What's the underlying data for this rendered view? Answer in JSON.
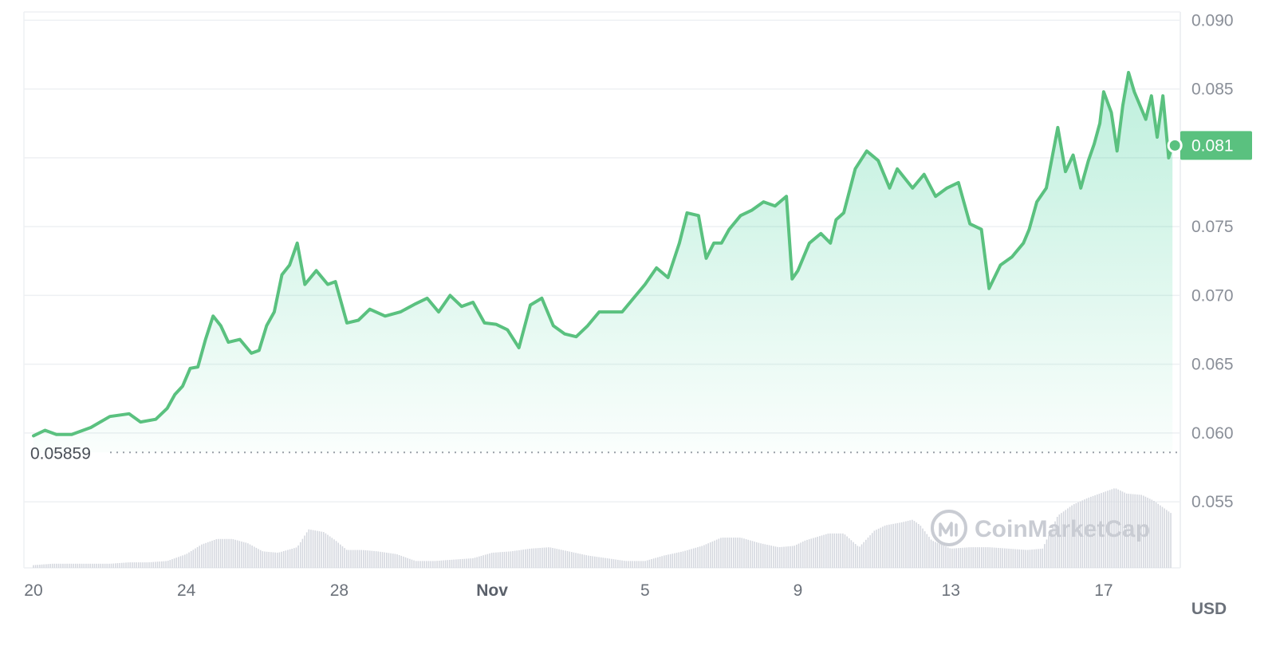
{
  "chart_data": {
    "type": "area",
    "x_ticks": [
      "20",
      "24",
      "28",
      "Nov",
      "5",
      "9",
      "13",
      "17"
    ],
    "x_tick_positions": [
      20,
      24,
      28,
      32,
      36,
      40,
      44,
      48
    ],
    "y_ticks": [
      "0.090",
      "0.085",
      "0.075",
      "0.070",
      "0.065",
      "0.060",
      "0.055"
    ],
    "y_tick_values": [
      0.09,
      0.085,
      0.075,
      0.07,
      0.065,
      0.06,
      0.055
    ],
    "ylim": [
      0.0502,
      0.0906
    ],
    "xlim": [
      19.75,
      49.9
    ],
    "unit_label": "USD",
    "open_price_label": "0.05859",
    "open_price_value": 0.05859,
    "current_price_label": "0.081",
    "current_price_value": 0.0809,
    "watermark": "CoinMarketCap",
    "colors": {
      "line": "#5ac17f",
      "fill": "#16c784",
      "grid": "#eef0f3",
      "volume": "#d5d8df",
      "badge": "#5ac17f"
    },
    "price_series": {
      "x": [
        20.0,
        20.3,
        20.6,
        21.0,
        21.5,
        22.0,
        22.5,
        22.8,
        23.2,
        23.5,
        23.7,
        23.9,
        24.1,
        24.3,
        24.5,
        24.7,
        24.9,
        25.1,
        25.4,
        25.7,
        25.9,
        26.1,
        26.3,
        26.5,
        26.7,
        26.9,
        27.1,
        27.4,
        27.7,
        27.9,
        28.2,
        28.5,
        28.8,
        29.2,
        29.6,
        30.0,
        30.3,
        30.6,
        30.9,
        31.2,
        31.5,
        31.8,
        32.1,
        32.4,
        32.7,
        33.0,
        33.3,
        33.6,
        33.9,
        34.2,
        34.5,
        34.8,
        35.1,
        35.4,
        35.7,
        36.0,
        36.3,
        36.6,
        36.9,
        37.1,
        37.4,
        37.6,
        37.8,
        38.0,
        38.2,
        38.5,
        38.8,
        39.1,
        39.4,
        39.7,
        39.85,
        40.0,
        40.3,
        40.6,
        40.85,
        41.0,
        41.2,
        41.5,
        41.8,
        42.1,
        42.4,
        42.6,
        42.8,
        43.0,
        43.3,
        43.6,
        43.9,
        44.2,
        44.5,
        44.8,
        45.0,
        45.3,
        45.6,
        45.9,
        46.05,
        46.25,
        46.5,
        46.8,
        47.0,
        47.2,
        47.4,
        47.6,
        47.75,
        47.9,
        48.0,
        48.2,
        48.35,
        48.5,
        48.65,
        48.8,
        48.95,
        49.1,
        49.25,
        49.4,
        49.55,
        49.7,
        49.8
      ],
      "y": [
        0.0598,
        0.0602,
        0.0599,
        0.0599,
        0.0604,
        0.0612,
        0.0614,
        0.0608,
        0.061,
        0.0618,
        0.0628,
        0.0634,
        0.0647,
        0.0648,
        0.0668,
        0.0685,
        0.0678,
        0.0666,
        0.0668,
        0.0658,
        0.066,
        0.0678,
        0.0688,
        0.0715,
        0.0722,
        0.0738,
        0.0708,
        0.0718,
        0.0708,
        0.071,
        0.068,
        0.0682,
        0.069,
        0.0685,
        0.0688,
        0.0694,
        0.0698,
        0.0688,
        0.07,
        0.0692,
        0.0695,
        0.068,
        0.0679,
        0.0675,
        0.0662,
        0.0693,
        0.0698,
        0.0678,
        0.0672,
        0.067,
        0.0678,
        0.0688,
        0.0688,
        0.0688,
        0.0698,
        0.0708,
        0.072,
        0.0713,
        0.0738,
        0.076,
        0.0758,
        0.0727,
        0.0738,
        0.0738,
        0.0748,
        0.0758,
        0.0762,
        0.0768,
        0.0765,
        0.0772,
        0.0712,
        0.0718,
        0.0738,
        0.0745,
        0.0738,
        0.0755,
        0.076,
        0.0792,
        0.0805,
        0.0798,
        0.0778,
        0.0792,
        0.0785,
        0.0778,
        0.0788,
        0.0772,
        0.0778,
        0.0782,
        0.0752,
        0.0748,
        0.0705,
        0.0722,
        0.0728,
        0.0738,
        0.0748,
        0.0768,
        0.0778,
        0.0822,
        0.079,
        0.0802,
        0.0778,
        0.0798,
        0.081,
        0.0825,
        0.0848,
        0.0833,
        0.0805,
        0.0838,
        0.0862,
        0.0848,
        0.0838,
        0.0828,
        0.0845,
        0.0815,
        0.0845,
        0.08,
        0.0809
      ]
    },
    "volume_series": {
      "x": [
        20.0,
        20.5,
        21.0,
        21.5,
        22.0,
        22.5,
        23.0,
        23.5,
        24.0,
        24.4,
        24.8,
        25.2,
        25.6,
        26.0,
        26.4,
        26.9,
        27.2,
        27.6,
        27.9,
        28.2,
        28.6,
        29.0,
        29.5,
        30.0,
        30.5,
        31.0,
        31.5,
        32.0,
        32.5,
        33.0,
        33.5,
        34.0,
        34.5,
        35.0,
        35.5,
        36.0,
        36.5,
        37.0,
        37.5,
        38.0,
        38.5,
        39.0,
        39.5,
        39.9,
        40.2,
        40.8,
        41.2,
        41.6,
        42.0,
        42.3,
        42.7,
        43.0,
        43.2,
        43.5,
        44.0,
        44.5,
        45.0,
        45.5,
        46.0,
        46.4,
        46.8,
        47.2,
        47.6,
        48.0,
        48.3,
        48.6,
        49.0,
        49.3,
        49.6,
        49.8
      ],
      "y": [
        0.0504,
        0.0505,
        0.0505,
        0.0505,
        0.0505,
        0.0506,
        0.0506,
        0.0507,
        0.0512,
        0.0519,
        0.0523,
        0.0523,
        0.052,
        0.0514,
        0.0513,
        0.0517,
        0.053,
        0.0528,
        0.0522,
        0.0515,
        0.0515,
        0.0514,
        0.0512,
        0.0507,
        0.0507,
        0.0508,
        0.0509,
        0.0513,
        0.0514,
        0.0516,
        0.0517,
        0.0514,
        0.0511,
        0.0509,
        0.0507,
        0.0507,
        0.0511,
        0.0514,
        0.0518,
        0.0524,
        0.0524,
        0.052,
        0.0517,
        0.0518,
        0.0522,
        0.0527,
        0.0527,
        0.0517,
        0.0529,
        0.0533,
        0.0535,
        0.0537,
        0.0533,
        0.0522,
        0.0516,
        0.0517,
        0.0517,
        0.0516,
        0.0515,
        0.0516,
        0.054,
        0.0548,
        0.0553,
        0.0557,
        0.056,
        0.0556,
        0.0555,
        0.0551,
        0.0545,
        0.0541
      ]
    }
  }
}
